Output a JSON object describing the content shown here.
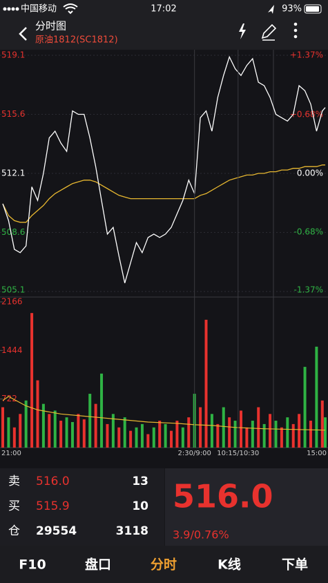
{
  "status_bar": {
    "carrier": "中国移动",
    "time": "17:02",
    "battery": "93%"
  },
  "header": {
    "title": "分时图",
    "subtitle": "原油1812(SC1812)"
  },
  "chart_data": [
    {
      "type": "line",
      "x": [
        0,
        10,
        20,
        30,
        40,
        50,
        60,
        70,
        80,
        90,
        100,
        110,
        120,
        130,
        140,
        150,
        160,
        170,
        180,
        190,
        200,
        210,
        220,
        230,
        240,
        250,
        260,
        270,
        280,
        290,
        300,
        310,
        320,
        330,
        340,
        350,
        360,
        370,
        380,
        390,
        400,
        410,
        420,
        430,
        440,
        450,
        460,
        470,
        480,
        490,
        500,
        510,
        520,
        530,
        540,
        550,
        555
      ],
      "values": [
        510.3,
        509.3,
        507.6,
        507.4,
        507.8,
        511.3,
        510.5,
        512.1,
        514.2,
        514.6,
        513.9,
        513.4,
        515.8,
        515.6,
        515.6,
        514.2,
        512.5,
        510.5,
        508.5,
        508.9,
        507.2,
        505.6,
        506.8,
        508.0,
        507.4,
        508.3,
        508.5,
        508.3,
        508.5,
        508.9,
        509.7,
        510.5,
        511.7,
        510.9,
        515.4,
        515.8,
        514.6,
        516.6,
        517.9,
        519.0,
        518.3,
        517.9,
        518.5,
        518.9,
        517.5,
        517.3,
        516.6,
        515.6,
        515.4,
        515.2,
        515.6,
        517.3,
        517.0,
        516.2,
        514.6,
        515.8,
        516.0
      ],
      "color": "#ffffff",
      "avg_values": [
        510.3,
        509.6,
        509.3,
        509.2,
        509.2,
        509.6,
        509.9,
        510.2,
        510.6,
        510.9,
        511.1,
        511.3,
        511.5,
        511.6,
        511.7,
        511.7,
        511.6,
        511.4,
        511.2,
        511.0,
        510.8,
        510.7,
        510.6,
        510.6,
        510.6,
        510.6,
        510.6,
        510.6,
        510.6,
        510.6,
        510.6,
        510.6,
        510.6,
        510.6,
        510.8,
        510.9,
        511.1,
        511.3,
        511.5,
        511.7,
        511.8,
        511.9,
        512.0,
        512.0,
        512.1,
        512.1,
        512.2,
        512.2,
        512.3,
        512.3,
        512.4,
        512.4,
        512.5,
        512.5,
        512.5,
        512.6,
        512.6
      ],
      "avg_color": "#e8b830",
      "xlim": [
        0,
        555
      ],
      "ylim": [
        505.1,
        519.1
      ],
      "yticks": [
        519.1,
        515.6,
        512.1,
        508.6,
        505.1
      ],
      "y2lim": [
        -1.37,
        1.37
      ],
      "y2ticks": [
        {
          "value": 1.37,
          "label": "+1.37%"
        },
        {
          "value": 0.68,
          "label": "+0.68%"
        },
        {
          "value": 0,
          "label": "0.00%"
        },
        {
          "value": -0.68,
          "label": "-0.68%"
        },
        {
          "value": -1.37,
          "label": "-1.37%"
        }
      ],
      "grid": true
    },
    {
      "type": "bar",
      "x": [
        0,
        10,
        20,
        30,
        40,
        50,
        60,
        70,
        80,
        90,
        100,
        110,
        120,
        130,
        140,
        150,
        160,
        170,
        180,
        190,
        200,
        210,
        220,
        230,
        240,
        250,
        260,
        270,
        280,
        290,
        300,
        310,
        320,
        330,
        340,
        350,
        360,
        370,
        380,
        390,
        400,
        410,
        420,
        430,
        440,
        450,
        460,
        470,
        480,
        490,
        500,
        510,
        520,
        530,
        540,
        550,
        555
      ],
      "values": [
        600,
        450,
        300,
        500,
        700,
        2000,
        1000,
        650,
        500,
        550,
        400,
        450,
        380,
        500,
        420,
        800,
        650,
        1100,
        350,
        500,
        300,
        450,
        250,
        300,
        350,
        200,
        300,
        400,
        350,
        250,
        400,
        300,
        450,
        800,
        600,
        1900,
        500,
        350,
        600,
        450,
        400,
        550,
        300,
        400,
        600,
        350,
        500,
        400,
        300,
        450,
        350,
        500,
        1200,
        400,
        1500,
        700,
        450
      ],
      "colors": [
        "#e8322e",
        "#2fb344",
        "#e8322e",
        "#e8322e",
        "#2fb344",
        "#e8322e",
        "#e8322e",
        "#2fb344",
        "#e8322e",
        "#2fb344",
        "#e8322e",
        "#2fb344",
        "#2fb344",
        "#e8322e",
        "#e8322e",
        "#2fb344",
        "#e8322e",
        "#2fb344",
        "#e8322e",
        "#2fb344",
        "#e8322e",
        "#2fb344",
        "#e8322e",
        "#2fb344",
        "#2fb344",
        "#e8322e",
        "#2fb344",
        "#e8322e",
        "#2fb344",
        "#e8322e",
        "#e8322e",
        "#2fb344",
        "#e8322e",
        "#2fb344",
        "#e8322e",
        "#e8322e",
        "#2fb344",
        "#e8322e",
        "#2fb344",
        "#e8322e",
        "#2fb344",
        "#e8322e",
        "#e8322e",
        "#2fb344",
        "#e8322e",
        "#2fb344",
        "#e8322e",
        "#2fb344",
        "#e8322e",
        "#2fb344",
        "#e8322e",
        "#e8322e",
        "#2fb344",
        "#e8322e",
        "#2fb344",
        "#e8322e",
        "#2fb344"
      ],
      "line_x": [
        0,
        10,
        40,
        60,
        100,
        150,
        200,
        250,
        300,
        330,
        360,
        400,
        450,
        500,
        555
      ],
      "line_values": [
        700,
        760,
        620,
        560,
        500,
        460,
        420,
        380,
        360,
        340,
        330,
        300,
        280,
        270,
        260
      ],
      "line_color": "#e8b830",
      "xlim": [
        0,
        555
      ],
      "xticks": [
        {
          "value": 0,
          "label": "21:00"
        },
        {
          "value": 330,
          "label": "2:30/9:00"
        },
        {
          "value": 405,
          "label": "10:15/10:30"
        },
        {
          "value": 555,
          "label": "15:00"
        }
      ],
      "ylim": [
        0,
        2166
      ],
      "yticks": [
        2166,
        1444,
        722
      ]
    }
  ],
  "quote": {
    "rows": [
      [
        "卖",
        "516.0",
        "13"
      ],
      [
        "买",
        "515.9",
        "10"
      ],
      [
        "仓",
        "29554",
        "3118"
      ]
    ],
    "last_price": "516.0",
    "change": "3.9/0.76%"
  },
  "tabs": [
    "F10",
    "盘口",
    "分时",
    "K线",
    "下单"
  ]
}
